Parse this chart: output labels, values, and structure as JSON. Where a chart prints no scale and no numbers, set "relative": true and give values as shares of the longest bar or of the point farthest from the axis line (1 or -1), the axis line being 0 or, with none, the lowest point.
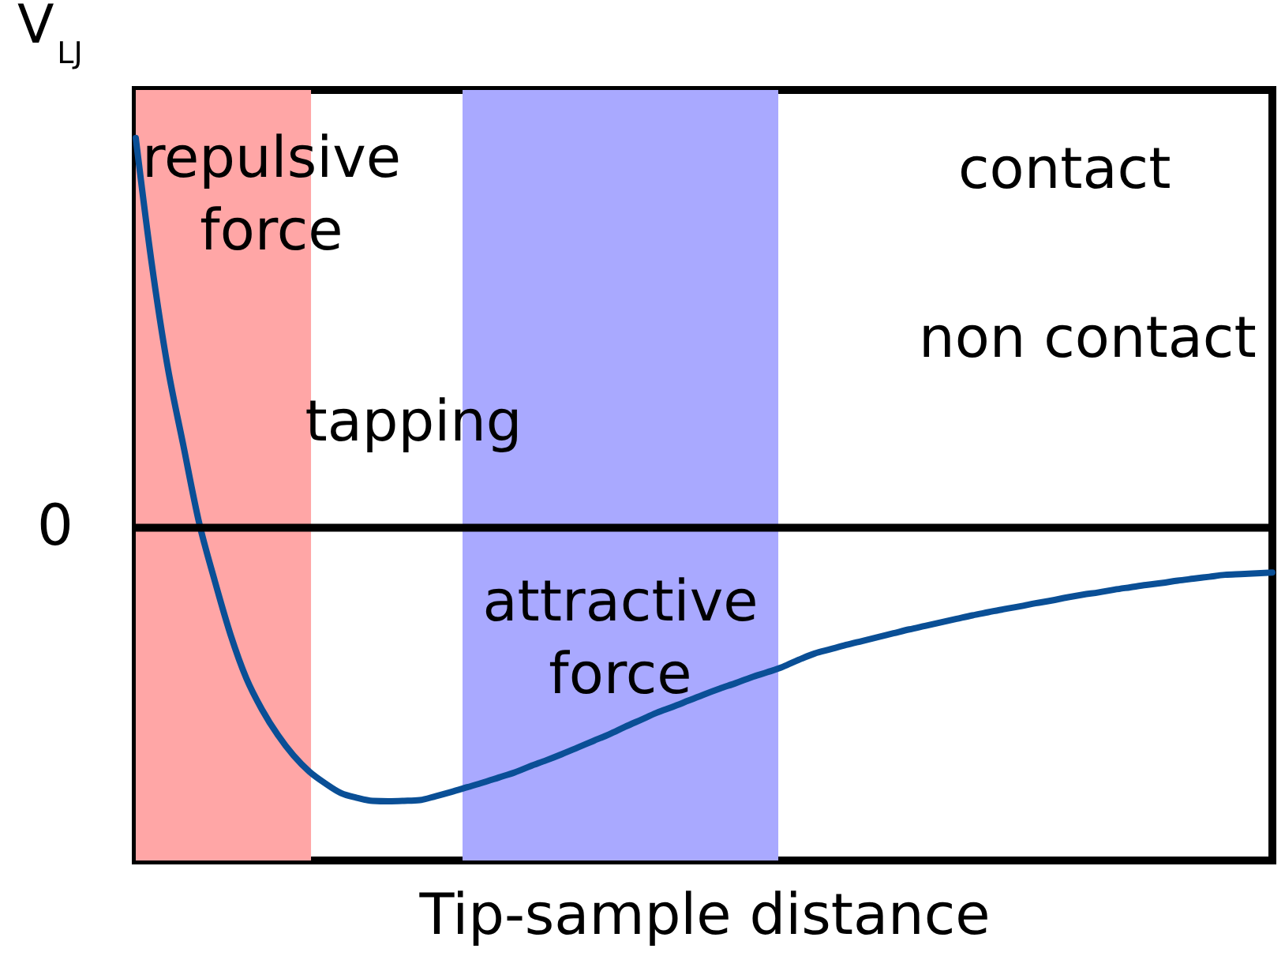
{
  "chart_data": {
    "type": "line",
    "relative": true,
    "xlabel": "Tip-sample distance",
    "ylabel": "V$_{LJ}$",
    "categories": [
      null,
      null,
      null,
      null,
      null,
      null,
      null,
      null,
      null,
      null,
      null,
      null,
      null,
      null,
      null,
      null,
      null,
      null,
      null,
      null,
      null,
      null,
      null,
      null,
      null,
      null,
      null,
      null,
      null,
      null,
      null,
      null,
      null,
      null,
      null,
      null,
      null,
      null,
      null,
      null,
      null,
      null,
      null,
      null,
      null,
      null,
      null,
      null,
      null,
      null,
      null,
      null,
      null,
      null,
      null,
      null,
      null,
      null,
      null,
      null,
      null,
      null,
      null,
      null,
      null,
      null,
      null,
      null,
      null,
      null,
      null,
      null,
      null
    ],
    "series": [
      {
        "color": "#0a4f96",
        "values": [
          1.0,
          0.681,
          0.417,
          0.214,
          0.015,
          -0.136,
          -0.274,
          -0.386,
          -0.467,
          -0.532,
          -0.585,
          -0.626,
          -0.656,
          -0.681,
          -0.693,
          -0.701,
          -0.702,
          -0.701,
          -0.699,
          -0.689,
          -0.678,
          -0.666,
          -0.654,
          -0.641,
          -0.628,
          -0.612,
          -0.597,
          -0.581,
          -0.564,
          -0.547,
          -0.53,
          -0.511,
          -0.493,
          -0.475,
          -0.46,
          -0.444,
          -0.428,
          -0.413,
          -0.399,
          -0.384,
          -0.371,
          -0.357,
          -0.339,
          -0.323,
          -0.312,
          -0.301,
          -0.291,
          -0.281,
          -0.271,
          -0.261,
          -0.252,
          -0.243,
          -0.234,
          -0.225,
          -0.217,
          -0.209,
          -0.202,
          -0.194,
          -0.187,
          -0.179,
          -0.172,
          -0.166,
          -0.159,
          -0.153,
          -0.147,
          -0.142,
          -0.136,
          -0.131,
          -0.126,
          -0.121,
          -0.119,
          -0.117,
          -0.115
        ]
      }
    ],
    "ref_lines": [
      {
        "axis": "y",
        "value": 0,
        "label": "0",
        "color": "#000000"
      }
    ],
    "annotations": [
      "repulsive force",
      "tapping",
      "attractive force",
      "contact",
      "non contact"
    ]
  }
}
